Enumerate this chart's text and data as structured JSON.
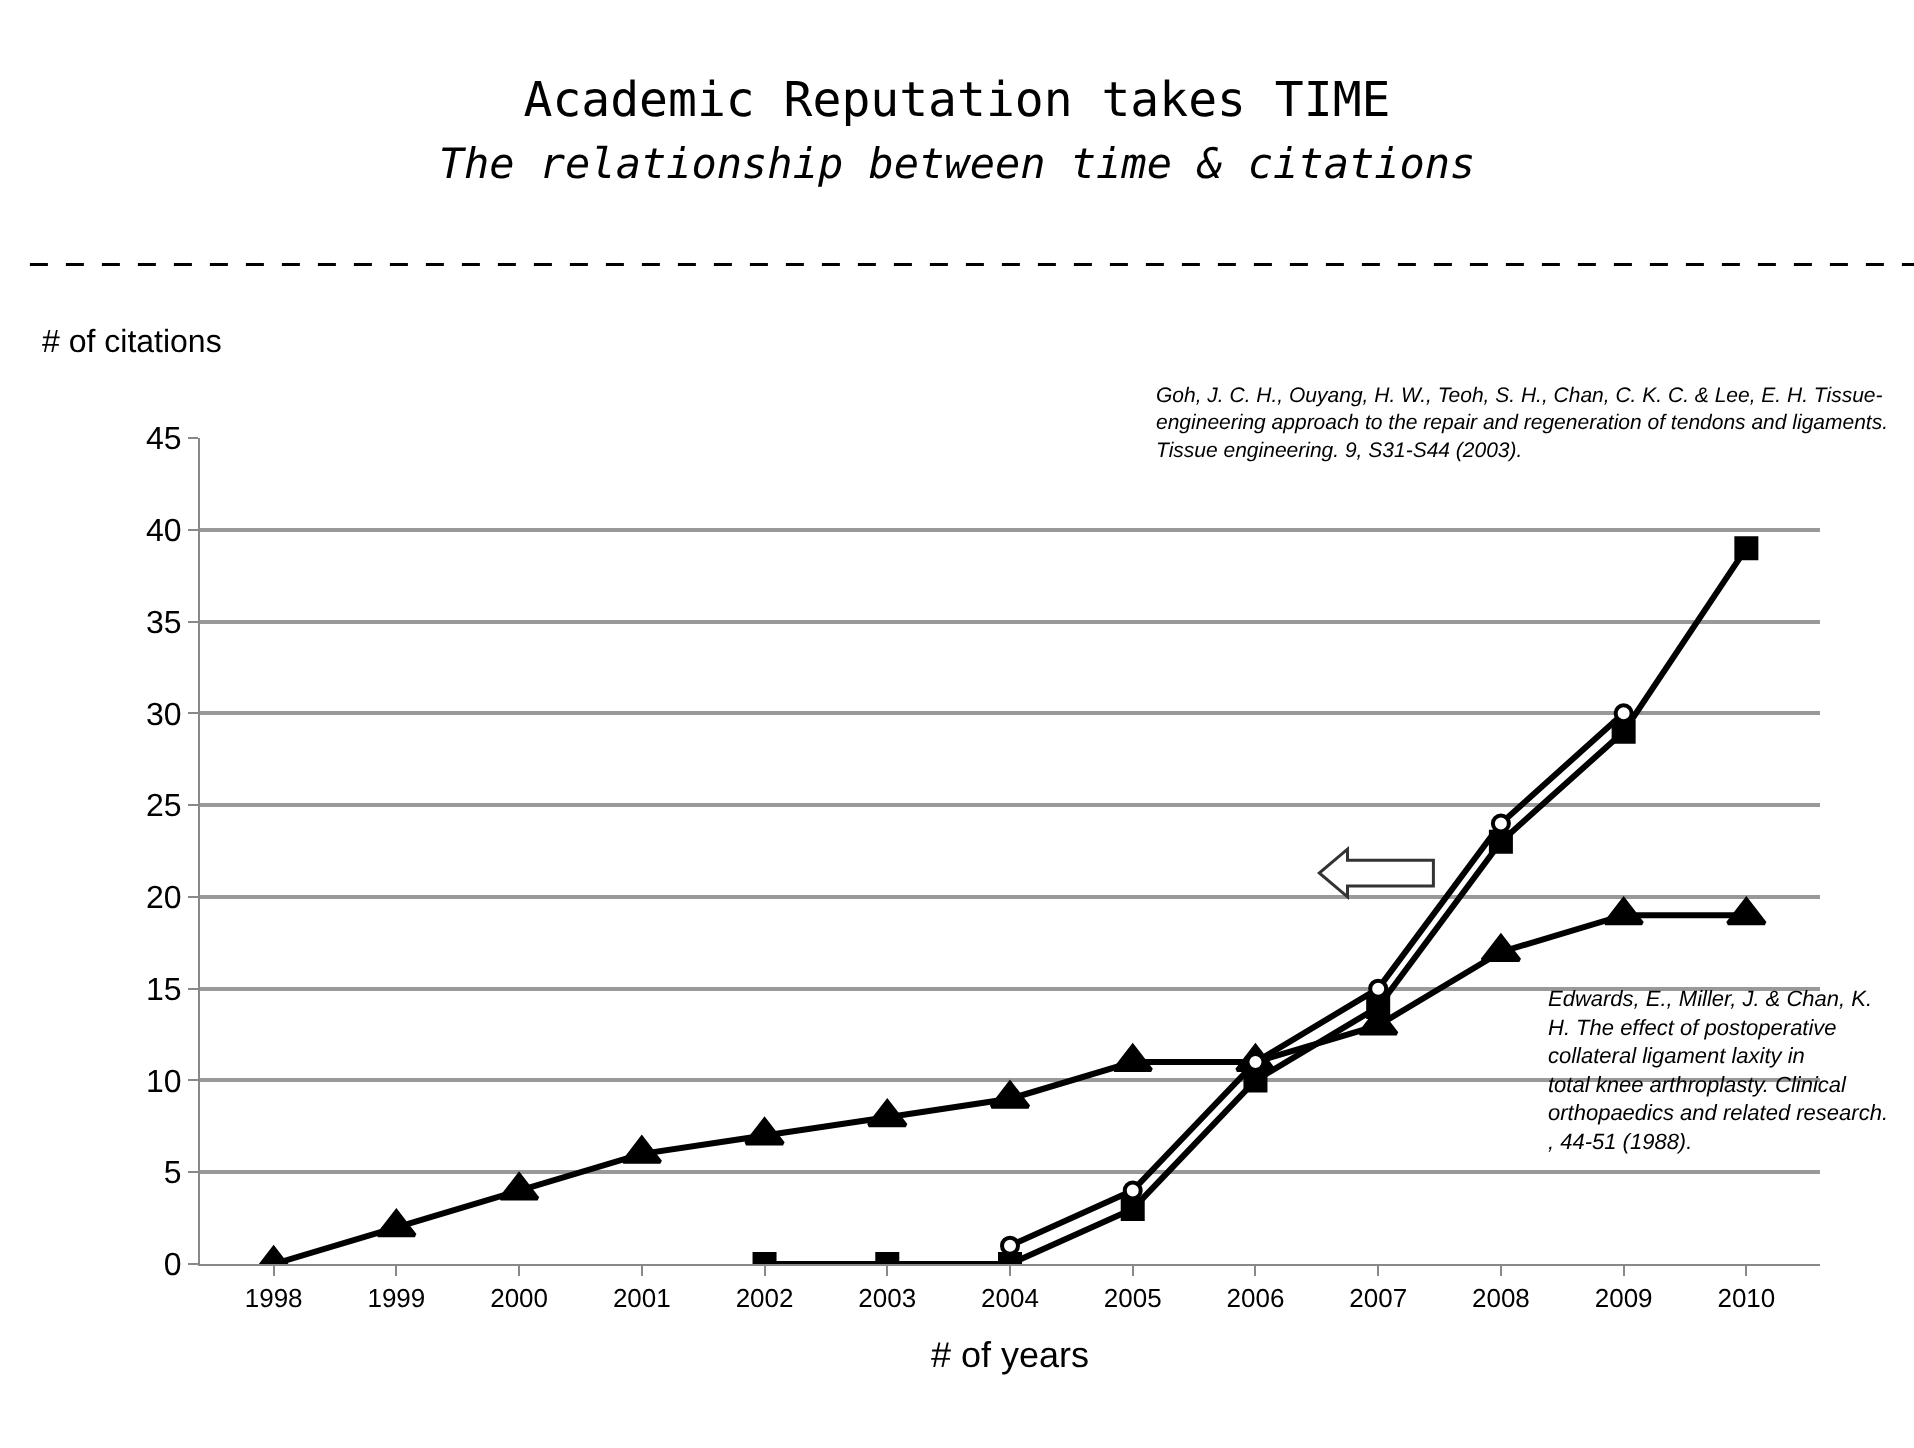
{
  "chart_data": {
    "type": "line",
    "title": "Academic Reputation takes TIME",
    "subtitle": "The relationship between time & citations",
    "xlabel": "# of years",
    "ylabel": "# of citations",
    "categories": [
      "1998",
      "1999",
      "2000",
      "2001",
      "2002",
      "2003",
      "2004",
      "2005",
      "2006",
      "2007",
      "2008",
      "2009",
      "2010"
    ],
    "series": [
      {
        "color": "#000000",
        "marker": "triangle",
        "values": [
          0,
          2,
          4,
          6,
          7,
          8,
          9,
          11,
          11,
          13,
          17,
          19,
          19
        ]
      },
      {
        "color": "#000000",
        "marker": "square",
        "values": [
          null,
          null,
          null,
          null,
          0,
          0,
          0,
          3,
          10,
          14,
          23,
          29,
          39
        ]
      },
      {
        "color": "#000000",
        "marker": "circle",
        "values": [
          null,
          null,
          null,
          null,
          null,
          null,
          1,
          4,
          11,
          15,
          24,
          30,
          null
        ]
      }
    ],
    "ylim": [
      0,
      45
    ],
    "yticks": [
      0,
      5,
      10,
      15,
      20,
      25,
      30,
      35,
      40,
      45
    ],
    "grid": "y",
    "line_style": "solid",
    "annotations": [
      "Goh, J. C. H., Ouyang, H. W., Teoh, S. H., Chan, C. K. C. & Lee, E. H. Tissue-engineering approach to the repair and regeneration of tendons and ligaments. Tissue engineering. 9, S31-S44 (2003).",
      "Edwards, E., Miller, J. & Chan, K. H. The effect of postoperative collateral ligament laxity in total knee arthroplasty. Clinical orthopaedics and related research. , 44-51 (1988)."
    ]
  }
}
